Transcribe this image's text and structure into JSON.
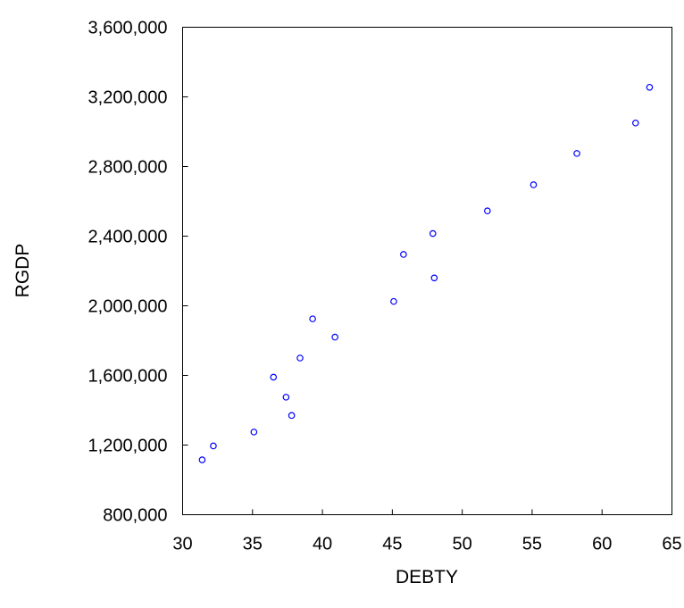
{
  "chart_data": {
    "type": "scatter",
    "title": "",
    "xlabel": "DEBTY",
    "ylabel": "RGDP",
    "xlim": [
      30,
      65
    ],
    "ylim": [
      800000,
      3600000
    ],
    "x_ticks": [
      30,
      35,
      40,
      45,
      50,
      55,
      60,
      65
    ],
    "y_ticks": [
      800000,
      1200000,
      1600000,
      2000000,
      2400000,
      2800000,
      3200000,
      3600000
    ],
    "x_tick_labels": [
      "30",
      "35",
      "40",
      "45",
      "50",
      "55",
      "60",
      "65"
    ],
    "y_tick_labels": [
      "800,000",
      "1,200,000",
      "1,600,000",
      "2,000,000",
      "2,400,000",
      "2,800,000",
      "3,200,000",
      "3,600,000"
    ],
    "grid": false,
    "marker": "open-circle",
    "marker_color": "#0000ff",
    "series": [
      {
        "points": [
          [
            31.4,
            1115000
          ],
          [
            32.2,
            1195000
          ],
          [
            35.1,
            1275000
          ],
          [
            36.5,
            1590000
          ],
          [
            37.4,
            1475000
          ],
          [
            37.8,
            1370000
          ],
          [
            38.4,
            1700000
          ],
          [
            39.3,
            1925000
          ],
          [
            40.9,
            1820000
          ],
          [
            45.1,
            2025000
          ],
          [
            45.8,
            2295000
          ],
          [
            47.9,
            2415000
          ],
          [
            48.0,
            2160000
          ],
          [
            51.8,
            2545000
          ],
          [
            55.1,
            2695000
          ],
          [
            58.2,
            2875000
          ],
          [
            62.4,
            3050000
          ],
          [
            63.4,
            3255000
          ]
        ]
      }
    ]
  }
}
